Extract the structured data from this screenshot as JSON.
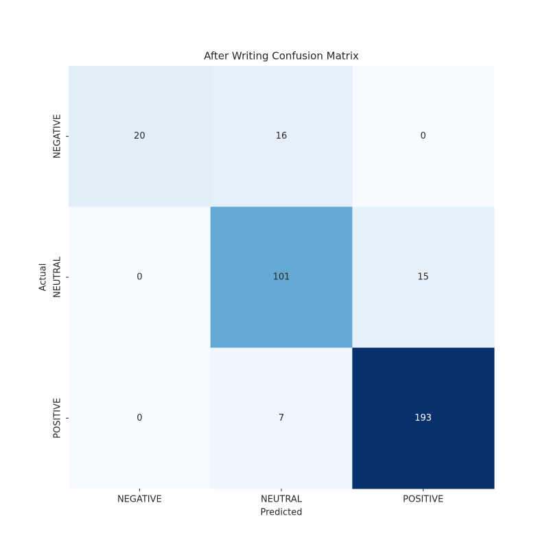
{
  "chart_data": {
    "type": "heatmap",
    "title": "After Writing Confusion Matrix",
    "x_label": "Predicted",
    "y_label": "Actual",
    "x_categories": [
      "NEGATIVE",
      "NEUTRAL",
      "POSITIVE"
    ],
    "y_categories": [
      "NEGATIVE",
      "NEUTRAL",
      "POSITIVE"
    ],
    "values": [
      [
        20,
        16,
        0
      ],
      [
        0,
        101,
        15
      ],
      [
        0,
        7,
        193
      ]
    ],
    "colormap": "Blues"
  }
}
